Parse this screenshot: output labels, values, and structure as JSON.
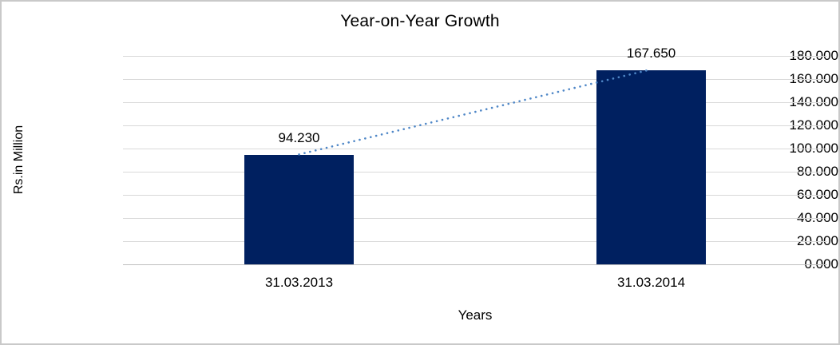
{
  "chart_data": {
    "type": "bar",
    "title": "Year-on-Year Growth",
    "xlabel": "Years",
    "ylabel": "Rs.in Million",
    "categories": [
      "31.03.2013",
      "31.03.2014"
    ],
    "series": [
      {
        "name": "Rs.in Million",
        "values": [
          94.23,
          167.65
        ],
        "value_labels": [
          "94.230",
          "167.650"
        ]
      }
    ],
    "ylim": [
      0,
      180
    ],
    "y_tick_step": 20,
    "y_ticks": [
      0,
      20,
      40,
      60,
      80,
      100,
      120,
      140,
      160,
      180
    ],
    "y_tick_labels": [
      "0.000",
      "20.000",
      "40.000",
      "60.000",
      "80.000",
      "100.000",
      "120.000",
      "140.000",
      "160.000",
      "180.000"
    ],
    "grid": true,
    "legend": "none",
    "trendline": {
      "style": "dotted",
      "from": {
        "category": "31.03.2013",
        "value": 94.23
      },
      "to": {
        "category": "31.03.2014",
        "value": 167.65
      }
    },
    "colors": {
      "bar": "#002060",
      "trendline": "#4f87c7",
      "gridline": "#d9d9d9",
      "axis_line": "#bfbfbf",
      "text": "#000000",
      "frame_border": "#c9c9c9",
      "background": "#ffffff"
    }
  }
}
